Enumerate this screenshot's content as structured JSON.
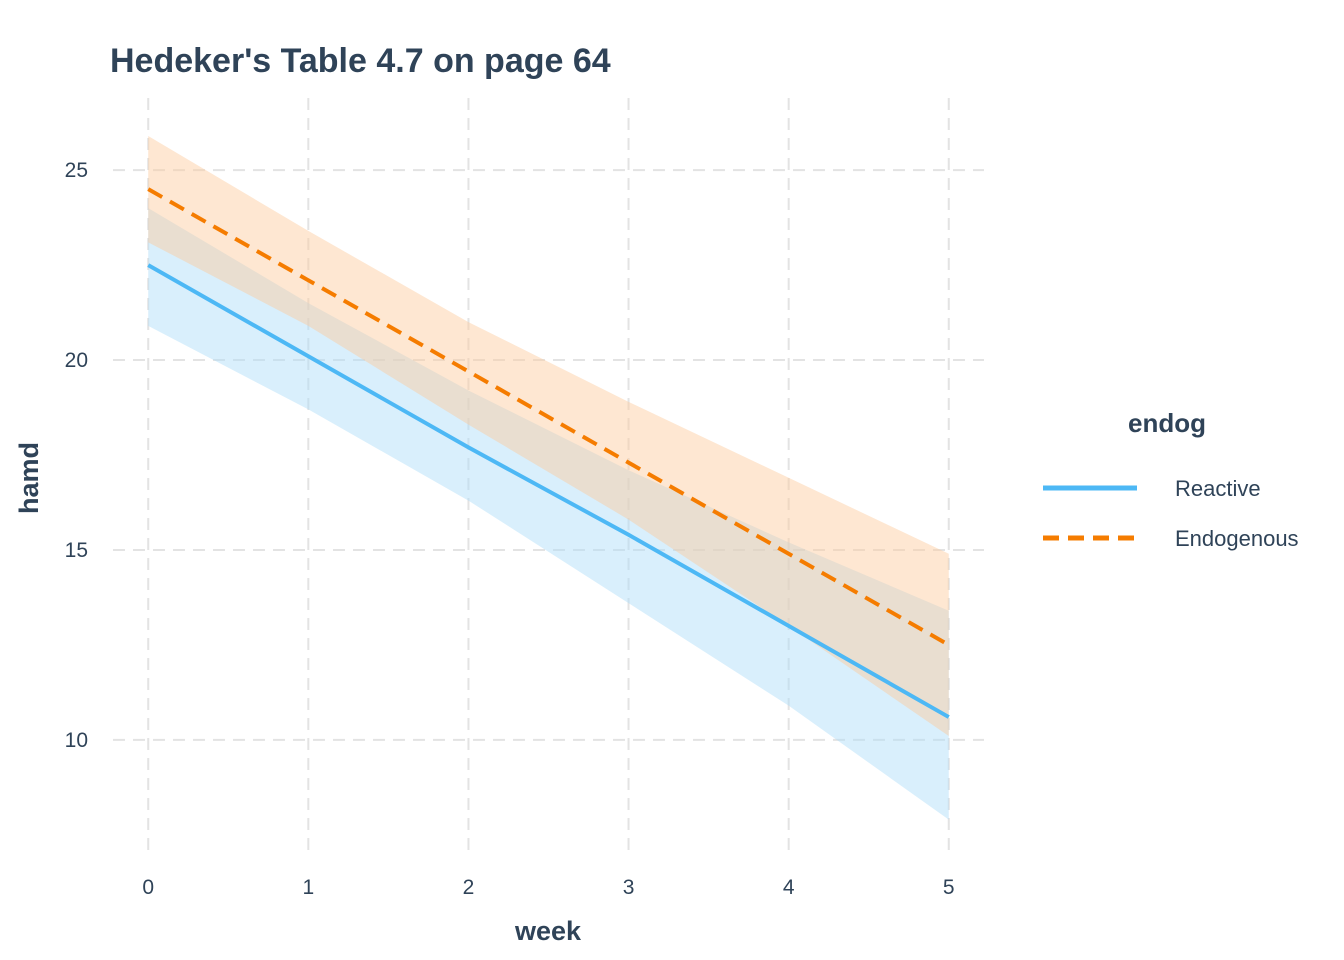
{
  "chart_data": {
    "type": "line",
    "title": "Hedeker's Table 4.7 on page 64",
    "xlabel": "week",
    "ylabel": "hamd",
    "x": [
      0,
      1,
      2,
      3,
      4,
      5
    ],
    "xlim": [
      -0.22,
      5.22
    ],
    "ylim": [
      7.1,
      26.9
    ],
    "xticks": [
      0,
      1,
      2,
      3,
      4,
      5
    ],
    "yticks": [
      10,
      15,
      20,
      25
    ],
    "grid": true,
    "legend": {
      "title": "endog",
      "position": "right"
    },
    "series": [
      {
        "name": "Reactive",
        "color": "#4db8f5",
        "dash": "solid",
        "values": [
          22.5,
          20.1,
          17.7,
          15.4,
          13.0,
          10.6
        ],
        "lower": [
          20.9,
          18.7,
          16.3,
          13.6,
          10.9,
          7.9
        ],
        "upper": [
          24.0,
          21.5,
          19.2,
          17.1,
          15.2,
          13.4
        ],
        "ribbon_color": "#aadcf8"
      },
      {
        "name": "Endogenous",
        "color": "#f57c00",
        "dash": "dashed",
        "values": [
          24.5,
          22.1,
          19.7,
          17.3,
          14.9,
          12.5
        ],
        "lower": [
          23.1,
          20.9,
          18.3,
          15.8,
          13.0,
          10.1
        ],
        "upper": [
          25.9,
          23.4,
          21.0,
          18.9,
          16.9,
          14.9
        ],
        "ribbon_color": "#fdc99b"
      }
    ]
  }
}
